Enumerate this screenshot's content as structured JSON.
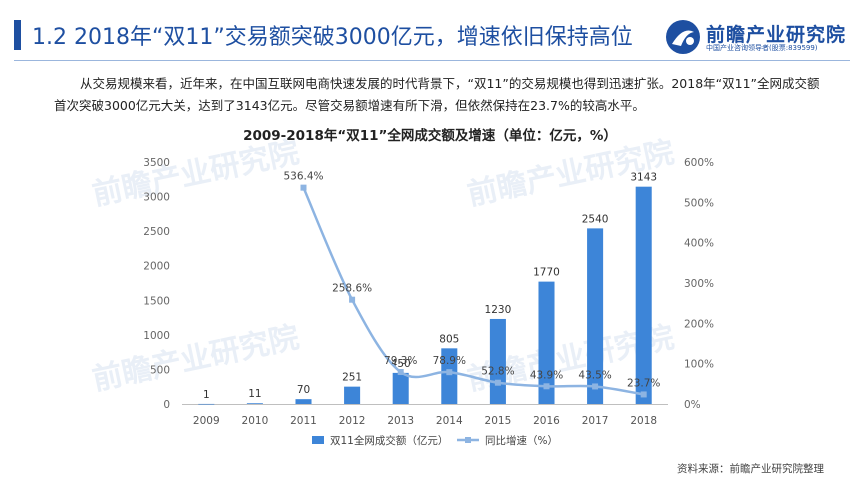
{
  "header": {
    "title": "1.2 2018年“双11”交易额突破3000亿元，增速依旧保持高位",
    "logo_name": "前瞻产业研究院",
    "logo_sub": "中国产业咨询领导者(股票:839599)"
  },
  "intro": {
    "text": "从交易规模来看，近年来，在中国互联网电商快速发展的时代背景下，“双11”的交易规模也得到迅速扩张。2018年“双11”全网成交额首次突破3000亿元大关，达到了3143亿元。尽管交易额增速有所下滑，但依然保持在23.7%的较高水平。"
  },
  "chart_data": {
    "type": "bar",
    "title": "2009-2018年“双11”全网成交额及增速（单位：亿元，%）",
    "categories": [
      "2009",
      "2010",
      "2011",
      "2012",
      "2013",
      "2014",
      "2015",
      "2016",
      "2017",
      "2018"
    ],
    "series": [
      {
        "name": "双11全网成交额（亿元）",
        "type": "bar",
        "values": [
          1,
          11,
          70,
          251,
          450,
          805,
          1230,
          1770,
          2540,
          3143
        ],
        "labels": [
          "1",
          "11",
          "70",
          "251",
          "450",
          "805",
          "1230",
          "1770",
          "2540",
          "3143"
        ]
      },
      {
        "name": "同比增速（%）",
        "type": "line",
        "axis": "right",
        "values": [
          null,
          null,
          536.4,
          258.6,
          79.3,
          78.9,
          52.8,
          43.9,
          43.5,
          23.7
        ],
        "labels": [
          "",
          "",
          "536.4%",
          "258.6%",
          "79.3%",
          "78.9%",
          "52.8%",
          "43.9%",
          "43.5%",
          "23.7%"
        ]
      }
    ],
    "y_left": {
      "min": 0,
      "max": 3500,
      "ticks": [
        "0",
        "500",
        "1000",
        "1500",
        "2000",
        "2500",
        "3000",
        "3500"
      ]
    },
    "y_right": {
      "min": 0,
      "max": 600,
      "ticks": [
        "0%",
        "100%",
        "200%",
        "300%",
        "400%",
        "500%",
        "600%"
      ]
    },
    "legend_position": "bottom",
    "colors": {
      "bar": "#3d85d8",
      "line": "#8db4e2"
    }
  },
  "watermark": "前瞻产业研究院",
  "source": "资料来源：前瞻产业研究院整理"
}
